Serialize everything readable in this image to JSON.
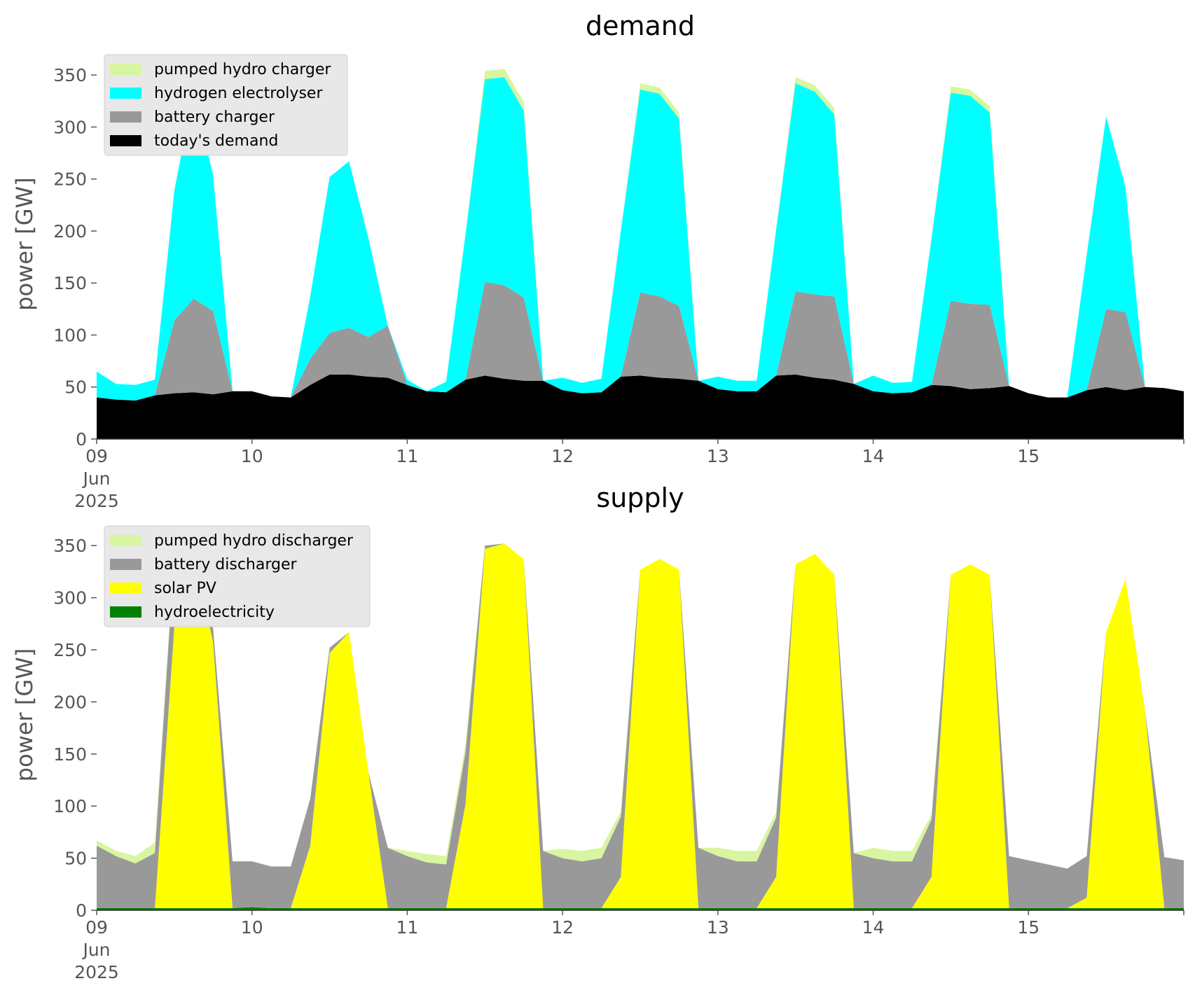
{
  "chart_data": [
    {
      "type": "area",
      "title": "demand",
      "ylabel": "power [GW]",
      "ylim": [
        0,
        375
      ],
      "yticks": [
        0,
        50,
        100,
        150,
        200,
        250,
        300,
        350
      ],
      "x_tick_labels": [
        "09\nJun\n2025",
        "10",
        "11",
        "12",
        "13",
        "14",
        "15"
      ],
      "x": [
        "2025-06-09 00:00",
        "2025-06-09 03:00",
        "2025-06-09 06:00",
        "2025-06-09 09:00",
        "2025-06-09 12:00",
        "2025-06-09 15:00",
        "2025-06-09 18:00",
        "2025-06-09 21:00",
        "2025-06-10 00:00",
        "2025-06-10 03:00",
        "2025-06-10 06:00",
        "2025-06-10 09:00",
        "2025-06-10 12:00",
        "2025-06-10 15:00",
        "2025-06-10 18:00",
        "2025-06-10 21:00",
        "2025-06-11 00:00",
        "2025-06-11 03:00",
        "2025-06-11 06:00",
        "2025-06-11 09:00",
        "2025-06-11 12:00",
        "2025-06-11 15:00",
        "2025-06-11 18:00",
        "2025-06-11 21:00",
        "2025-06-12 00:00",
        "2025-06-12 03:00",
        "2025-06-12 06:00",
        "2025-06-12 09:00",
        "2025-06-12 12:00",
        "2025-06-12 15:00",
        "2025-06-12 18:00",
        "2025-06-12 21:00",
        "2025-06-13 00:00",
        "2025-06-13 03:00",
        "2025-06-13 06:00",
        "2025-06-13 09:00",
        "2025-06-13 12:00",
        "2025-06-13 15:00",
        "2025-06-13 18:00",
        "2025-06-13 21:00",
        "2025-06-14 00:00",
        "2025-06-14 03:00",
        "2025-06-14 06:00",
        "2025-06-14 09:00",
        "2025-06-14 12:00",
        "2025-06-14 15:00",
        "2025-06-14 18:00",
        "2025-06-14 21:00",
        "2025-06-15 00:00",
        "2025-06-15 03:00",
        "2025-06-15 06:00",
        "2025-06-15 09:00",
        "2025-06-15 12:00",
        "2025-06-15 15:00",
        "2025-06-15 18:00",
        "2025-06-15 21:00",
        "2025-06-16 00:00"
      ],
      "legend": "top-left",
      "grid": false,
      "series": [
        {
          "name": "today's demand",
          "color": "#000000",
          "values": [
            40,
            38,
            37,
            42,
            44,
            45,
            43,
            46,
            46,
            41,
            40,
            52,
            62,
            62,
            60,
            59,
            52,
            46,
            45,
            57,
            61,
            58,
            56,
            56,
            47,
            44,
            45,
            60,
            61,
            59,
            58,
            56,
            48,
            46,
            46,
            61,
            62,
            59,
            57,
            53,
            46,
            44,
            45,
            52,
            51,
            48,
            49,
            51,
            44,
            40,
            40,
            47,
            50,
            47,
            50,
            49,
            46
          ]
        },
        {
          "name": "battery charger",
          "color": "#999999",
          "values": [
            0,
            0,
            0,
            0,
            70,
            90,
            80,
            0,
            0,
            0,
            0,
            25,
            40,
            45,
            38,
            50,
            0,
            0,
            0,
            0,
            90,
            90,
            80,
            0,
            0,
            0,
            0,
            0,
            80,
            78,
            70,
            0,
            0,
            0,
            0,
            0,
            80,
            80,
            80,
            0,
            0,
            0,
            0,
            0,
            82,
            82,
            80,
            0,
            0,
            0,
            0,
            0,
            75,
            75,
            0,
            0,
            0
          ]
        },
        {
          "name": "hydrogen electrolyser",
          "color": "#00ffff",
          "values": [
            25,
            15,
            15,
            15,
            125,
            200,
            130,
            0,
            0,
            0,
            0,
            60,
            150,
            160,
            95,
            0,
            5,
            0,
            10,
            140,
            195,
            200,
            180,
            0,
            12,
            10,
            13,
            140,
            195,
            195,
            180,
            0,
            12,
            10,
            10,
            140,
            200,
            195,
            175,
            0,
            15,
            10,
            10,
            140,
            200,
            200,
            185,
            0,
            0,
            0,
            0,
            130,
            185,
            120,
            0,
            0,
            0
          ]
        },
        {
          "name": "pumped hydro charger",
          "color": "#d8f5a0",
          "values": [
            0,
            0,
            0,
            0,
            0,
            0,
            0,
            0,
            0,
            0,
            0,
            0,
            0,
            0,
            0,
            0,
            0,
            0,
            0,
            0,
            8,
            8,
            8,
            0,
            0,
            0,
            0,
            0,
            6,
            6,
            6,
            0,
            0,
            0,
            0,
            0,
            6,
            6,
            6,
            0,
            0,
            0,
            0,
            0,
            6,
            6,
            6,
            0,
            0,
            0,
            0,
            0,
            0,
            0,
            0,
            0,
            0
          ]
        }
      ]
    },
    {
      "type": "area",
      "title": "supply",
      "ylabel": "power [GW]",
      "ylim": [
        0,
        375
      ],
      "yticks": [
        0,
        50,
        100,
        150,
        200,
        250,
        300,
        350
      ],
      "x_tick_labels": [
        "09\nJun\n2025",
        "10",
        "11",
        "12",
        "13",
        "14",
        "15"
      ],
      "x": [
        "2025-06-09 00:00",
        "2025-06-09 03:00",
        "2025-06-09 06:00",
        "2025-06-09 09:00",
        "2025-06-09 12:00",
        "2025-06-09 15:00",
        "2025-06-09 18:00",
        "2025-06-09 21:00",
        "2025-06-10 00:00",
        "2025-06-10 03:00",
        "2025-06-10 06:00",
        "2025-06-10 09:00",
        "2025-06-10 12:00",
        "2025-06-10 15:00",
        "2025-06-10 18:00",
        "2025-06-10 21:00",
        "2025-06-11 00:00",
        "2025-06-11 03:00",
        "2025-06-11 06:00",
        "2025-06-11 09:00",
        "2025-06-11 12:00",
        "2025-06-11 15:00",
        "2025-06-11 18:00",
        "2025-06-11 21:00",
        "2025-06-12 00:00",
        "2025-06-12 03:00",
        "2025-06-12 06:00",
        "2025-06-12 09:00",
        "2025-06-12 12:00",
        "2025-06-12 15:00",
        "2025-06-12 18:00",
        "2025-06-12 21:00",
        "2025-06-13 00:00",
        "2025-06-13 03:00",
        "2025-06-13 06:00",
        "2025-06-13 09:00",
        "2025-06-13 12:00",
        "2025-06-13 15:00",
        "2025-06-13 18:00",
        "2025-06-13 21:00",
        "2025-06-14 00:00",
        "2025-06-14 03:00",
        "2025-06-14 06:00",
        "2025-06-14 09:00",
        "2025-06-14 12:00",
        "2025-06-14 15:00",
        "2025-06-14 18:00",
        "2025-06-14 21:00",
        "2025-06-15 00:00",
        "2025-06-15 03:00",
        "2025-06-15 06:00",
        "2025-06-15 09:00",
        "2025-06-15 12:00",
        "2025-06-15 15:00",
        "2025-06-15 18:00",
        "2025-06-15 21:00",
        "2025-06-16 00:00"
      ],
      "legend": "top-left",
      "grid": false,
      "series": [
        {
          "name": "hydroelectricity",
          "color": "#008000",
          "values": [
            2,
            2,
            2,
            2,
            2,
            2,
            2,
            2,
            3,
            2,
            2,
            2,
            2,
            2,
            2,
            2,
            2,
            2,
            2,
            2,
            2,
            2,
            2,
            2,
            2,
            2,
            2,
            2,
            2,
            2,
            2,
            2,
            2,
            2,
            2,
            2,
            2,
            2,
            2,
            2,
            2,
            2,
            2,
            2,
            2,
            2,
            2,
            2,
            2,
            2,
            2,
            2,
            2,
            2,
            2,
            2,
            2
          ]
        },
        {
          "name": "solar PV",
          "color": "#ffff00",
          "values": [
            0,
            0,
            0,
            0,
            270,
            340,
            255,
            0,
            0,
            0,
            0,
            60,
            245,
            265,
            130,
            0,
            0,
            0,
            0,
            100,
            345,
            350,
            335,
            0,
            0,
            0,
            0,
            30,
            325,
            335,
            325,
            0,
            0,
            0,
            0,
            30,
            330,
            340,
            320,
            0,
            0,
            0,
            0,
            30,
            320,
            330,
            320,
            0,
            0,
            0,
            0,
            10,
            265,
            316,
            190,
            0,
            0
          ]
        },
        {
          "name": "battery discharger",
          "color": "#999999",
          "values": [
            60,
            50,
            43,
            53,
            70,
            8,
            13,
            45,
            44,
            40,
            40,
            45,
            5,
            0,
            0,
            58,
            50,
            44,
            42,
            50,
            3,
            0,
            0,
            55,
            48,
            45,
            48,
            58,
            0,
            0,
            0,
            58,
            50,
            45,
            45,
            57,
            0,
            0,
            0,
            53,
            48,
            45,
            45,
            55,
            0,
            0,
            0,
            50,
            46,
            42,
            38,
            40,
            0,
            0,
            0,
            49,
            46
          ]
        },
        {
          "name": "pumped hydro discharger",
          "color": "#d8f5a0",
          "values": [
            5,
            5,
            7,
            10,
            0,
            0,
            0,
            0,
            0,
            0,
            0,
            0,
            0,
            0,
            0,
            0,
            5,
            8,
            8,
            8,
            0,
            0,
            0,
            0,
            9,
            10,
            10,
            5,
            0,
            0,
            0,
            0,
            8,
            10,
            10,
            5,
            0,
            0,
            0,
            0,
            10,
            10,
            10,
            5,
            0,
            0,
            0,
            0,
            0,
            0,
            0,
            0,
            0,
            0,
            0,
            0,
            0
          ]
        }
      ],
      "legend_order": [
        "pumped hydro discharger",
        "battery discharger",
        "solar PV",
        "hydroelectricity"
      ]
    }
  ]
}
